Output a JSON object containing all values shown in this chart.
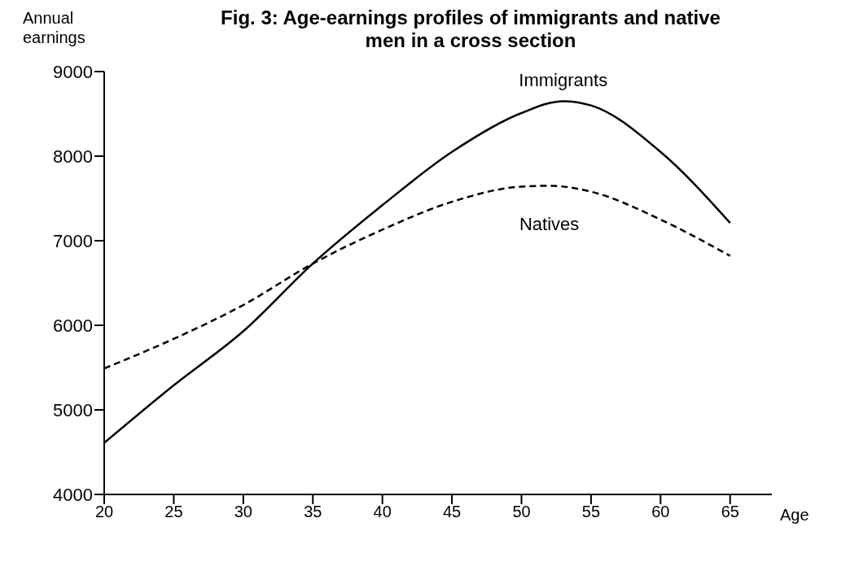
{
  "chart_data": {
    "type": "line",
    "title": "Fig. 3: Age-earnings profiles of immigrants and native men in a cross section",
    "xlabel": "Age",
    "ylabel": "Annual earnings",
    "series": [
      {
        "name": "Immigrants",
        "color": "#000000",
        "line_style": "solid",
        "x": [
          20,
          25,
          30,
          35,
          40,
          45,
          50,
          53,
          55,
          60,
          65
        ],
        "values": [
          4610,
          5290,
          5930,
          6730,
          7420,
          8050,
          8510,
          8650,
          8600,
          8050,
          7210
        ]
      },
      {
        "name": "Natives",
        "color": "#000000",
        "line_style": "dashed",
        "x": [
          20,
          25,
          30,
          35,
          40,
          45,
          50,
          52,
          55,
          60,
          65
        ],
        "values": [
          5490,
          5840,
          6240,
          6730,
          7130,
          7460,
          7640,
          7650,
          7580,
          7250,
          6820
        ]
      }
    ],
    "xlim": [
      20,
      68
    ],
    "xticks": [
      20,
      25,
      30,
      35,
      40,
      45,
      50,
      55,
      60,
      65
    ],
    "ylim": [
      4000,
      9000
    ],
    "yticks": [
      4000,
      5000,
      6000,
      7000,
      8000,
      9000
    ],
    "grid": false,
    "legend": false,
    "marker": "none"
  }
}
